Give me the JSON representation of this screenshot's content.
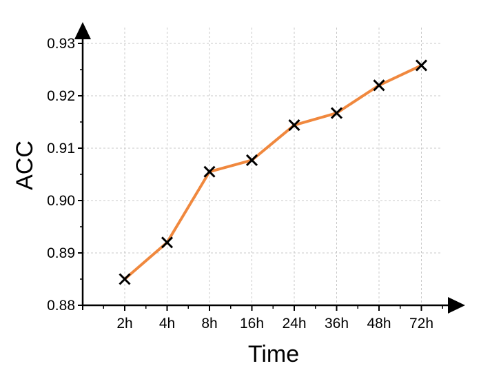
{
  "chart_data": {
    "type": "line",
    "title": "",
    "xlabel": "Time",
    "ylabel": "ACC",
    "categories": [
      "2h",
      "4h",
      "8h",
      "16h",
      "24h",
      "36h",
      "48h",
      "72h"
    ],
    "y_ticks": [
      "0.88",
      "0.89",
      "0.90",
      "0.91",
      "0.92",
      "0.93"
    ],
    "ylim": [
      0.88,
      0.93
    ],
    "grid": true,
    "legend": "none",
    "series": [
      {
        "values": [
          0.885,
          0.892,
          0.9055,
          0.9077,
          0.9144,
          0.9167,
          0.922,
          0.9258
        ],
        "line_color": "#f0883e",
        "marker": "x",
        "marker_color": "#000000"
      }
    ]
  }
}
